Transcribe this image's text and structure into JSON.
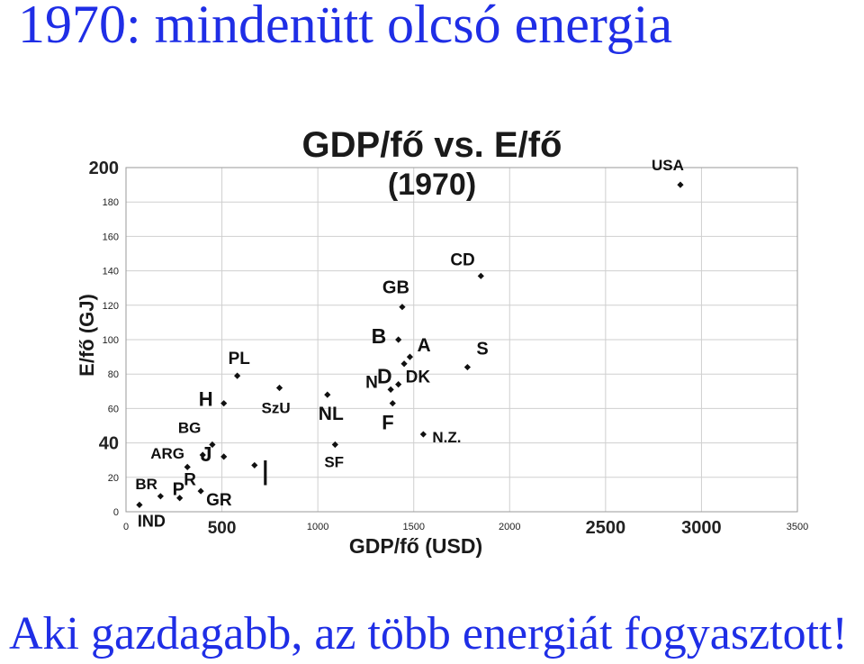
{
  "slide": {
    "title": "1970: mindenütt olcsó energia",
    "footer": "Aki gazdagabb, az több energiát fogyasztott!"
  },
  "chart_data": {
    "type": "scatter",
    "title": "GDP/fő vs. E/fő",
    "subtitle": "(1970)",
    "xlabel": "GDP/fő (USD)",
    "ylabel": "E/fő (GJ)",
    "xlim": [
      0,
      3500
    ],
    "ylim": [
      0,
      200
    ],
    "grid": true,
    "marker_color": "#111111",
    "x_ticks": [
      "0",
      "500",
      "1000",
      "1500",
      "2000",
      "2500",
      "3000",
      "3500"
    ],
    "y_ticks": [
      "0",
      "20",
      "40",
      "60",
      "80",
      "100",
      "120",
      "140",
      "160",
      "180",
      "200"
    ],
    "points": [
      {
        "label": "USA",
        "x": 2890,
        "y": 190
      },
      {
        "label": "CD",
        "x": 1850,
        "y": 137
      },
      {
        "label": "GB",
        "x": 1440,
        "y": 119
      },
      {
        "label": "B",
        "x": 1420,
        "y": 100
      },
      {
        "label": "A",
        "x": 1480,
        "y": 90
      },
      {
        "label": "D",
        "x": 1450,
        "y": 86
      },
      {
        "label": "S",
        "x": 1780,
        "y": 84
      },
      {
        "label": "N",
        "x": 1380,
        "y": 71
      },
      {
        "label": "DK",
        "x": 1420,
        "y": 74
      },
      {
        "label": "F",
        "x": 1390,
        "y": 63
      },
      {
        "label": "N.Z.",
        "x": 1550,
        "y": 45
      },
      {
        "label": "NL",
        "x": 1050,
        "y": 68
      },
      {
        "label": "SF",
        "x": 1090,
        "y": 39
      },
      {
        "label": "SzU",
        "x": 800,
        "y": 72
      },
      {
        "label": "I",
        "x": 670,
        "y": 27
      },
      {
        "label": "J",
        "x": 510,
        "y": 32
      },
      {
        "label": "PL",
        "x": 580,
        "y": 79
      },
      {
        "label": "H",
        "x": 510,
        "y": 63
      },
      {
        "label": "BG",
        "x": 450,
        "y": 39
      },
      {
        "label": "ARG",
        "x": 400,
        "y": 33
      },
      {
        "label": "R",
        "x": 320,
        "y": 26
      },
      {
        "label": "GR",
        "x": 390,
        "y": 12
      },
      {
        "label": "P",
        "x": 280,
        "y": 8
      },
      {
        "label": "BR",
        "x": 180,
        "y": 9
      },
      {
        "label": "IND",
        "x": 70,
        "y": 4
      }
    ]
  }
}
